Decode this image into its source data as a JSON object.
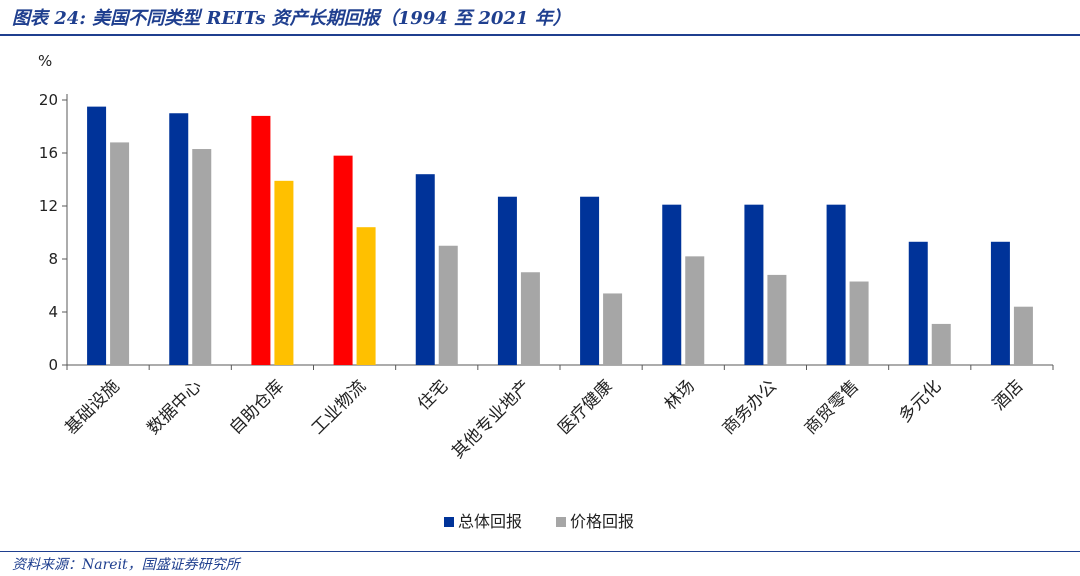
{
  "header": {
    "title": "图表 24:  美国不同类型 REITs 资产长期回报（1994 至 2021 年）"
  },
  "footer": {
    "source": "资料来源：Nareit，国盛证券研究所"
  },
  "colors": {
    "total_return": "#003399",
    "price_return": "#a6a6a6",
    "highlight_total": "#ff0000",
    "highlight_price": "#ffc000",
    "axis": "#595959",
    "header": "#1f3f8f"
  },
  "chart_data": {
    "type": "bar",
    "title": "",
    "xlabel": "",
    "ylabel": "%",
    "ylim": [
      0,
      20
    ],
    "yticks": [
      0,
      4,
      8,
      12,
      16,
      20
    ],
    "grid": false,
    "legend_position": "bottom",
    "categories": [
      "基础设施",
      "数据中心",
      "自助仓库",
      "工业物流",
      "住宅",
      "其他专业地产",
      "医疗健康",
      "林场",
      "商务办公",
      "商贸零售",
      "多元化",
      "酒店"
    ],
    "highlighted_categories": [
      "自助仓库",
      "工业物流"
    ],
    "series": [
      {
        "name": "总体回报",
        "values": [
          19.5,
          19.0,
          18.8,
          15.8,
          14.4,
          12.7,
          12.7,
          12.1,
          12.1,
          12.1,
          9.3,
          9.3
        ]
      },
      {
        "name": "价格回报",
        "values": [
          16.8,
          16.3,
          13.9,
          10.4,
          9.0,
          7.0,
          5.4,
          8.2,
          6.8,
          6.3,
          3.1,
          4.4
        ]
      }
    ]
  }
}
